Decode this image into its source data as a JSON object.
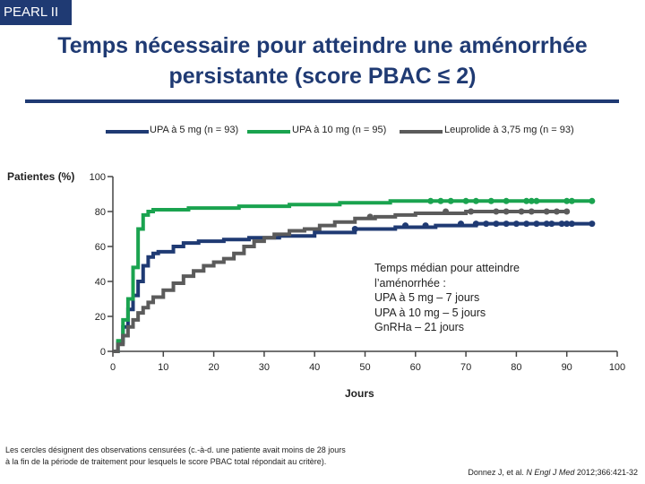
{
  "badge": "PEARL II",
  "title_line1": "Temps nécessaire pour atteindre une aménorrhée",
  "title_line2": "persistante (score PBAC ≤ 2)",
  "footnote": "Les cercles désignent des observations censurées (c.-à-d. une patiente avait moins de 28 jours à la fin de la période de traitement pour lesquels le score PBAC total répondait au critère).",
  "source_prefix": "Donnez J, et al. ",
  "source_journal": "N Engl J Med",
  "source_suffix": " 2012;366:421-32",
  "note": {
    "line1": "Temps médian pour atteindre",
    "line2": "l’aménorrhée :",
    "line3": "UPA à 5 mg – 7 jours",
    "line4": "UPA  à 10 mg – 5 jours",
    "line5": "GnRHa – 21 jours"
  },
  "colors": {
    "upa5": "#1f3a73",
    "upa10": "#1aa34f",
    "leuprolide": "#5b5b5b",
    "brand": "#1f3a73"
  },
  "chart_data": {
    "type": "line",
    "xlabel": "Jours",
    "ylabel": "Patientes (%)",
    "xlim": [
      0,
      100
    ],
    "ylim": [
      0,
      100
    ],
    "xticks": [
      0,
      10,
      20,
      30,
      40,
      50,
      60,
      70,
      80,
      90,
      100
    ],
    "yticks": [
      0,
      20,
      40,
      60,
      80,
      100
    ],
    "legend": "top",
    "series": [
      {
        "name": "UPA à 5 mg (n = 93)",
        "key": "upa5",
        "x": [
          0,
          1,
          2,
          3,
          4,
          5,
          6,
          7,
          8,
          9,
          10,
          12,
          14,
          17,
          22,
          27,
          33,
          40,
          48,
          56,
          64,
          72,
          80,
          95
        ],
        "y": [
          0,
          5,
          14,
          24,
          32,
          40,
          49,
          54,
          56,
          57,
          57,
          60,
          62,
          63,
          64,
          65,
          66,
          68,
          70,
          71,
          72,
          73,
          73,
          73
        ],
        "censored_x": [
          48,
          58,
          62,
          69,
          72,
          74,
          76,
          78,
          80,
          82,
          84,
          86,
          87,
          89,
          90,
          91,
          95
        ],
        "censored_y": [
          70,
          72,
          72,
          73,
          73,
          73,
          73,
          73,
          73,
          73,
          73,
          73,
          73,
          73,
          73,
          73,
          73
        ]
      },
      {
        "name": "UPA à 10 mg (n = 95)",
        "key": "upa10",
        "x": [
          0,
          1,
          2,
          3,
          4,
          5,
          6,
          7,
          8,
          10,
          15,
          25,
          35,
          45,
          55,
          65,
          80,
          95
        ],
        "y": [
          0,
          6,
          18,
          30,
          48,
          70,
          78,
          80,
          81,
          81,
          82,
          83,
          84,
          85,
          86,
          86,
          86,
          86
        ],
        "censored_x": [
          63,
          65,
          67,
          70,
          72,
          75,
          78,
          82,
          83,
          84,
          90,
          91,
          95
        ],
        "censored_y": [
          86,
          86,
          86,
          86,
          86,
          86,
          86,
          86,
          86,
          86,
          86,
          86,
          86
        ]
      },
      {
        "name": "Leuprolide à 3,75 mg (n = 93)",
        "key": "leuprolide",
        "x": [
          0,
          1,
          2,
          3,
          4,
          5,
          6,
          7,
          8,
          10,
          12,
          14,
          16,
          18,
          20,
          22,
          24,
          26,
          28,
          30,
          32,
          35,
          38,
          41,
          44,
          48,
          52,
          56,
          60,
          70,
          90
        ],
        "y": [
          0,
          4,
          9,
          14,
          18,
          22,
          25,
          28,
          31,
          35,
          39,
          43,
          46,
          49,
          51,
          53,
          56,
          60,
          63,
          65,
          67,
          69,
          70,
          72,
          74,
          76,
          77,
          78,
          79,
          80,
          80
        ],
        "censored_x": [
          51,
          66,
          71,
          76,
          78,
          81,
          83,
          86,
          88,
          90
        ],
        "censored_y": [
          77,
          80,
          80,
          80,
          80,
          80,
          80,
          80,
          80,
          80
        ]
      }
    ]
  }
}
